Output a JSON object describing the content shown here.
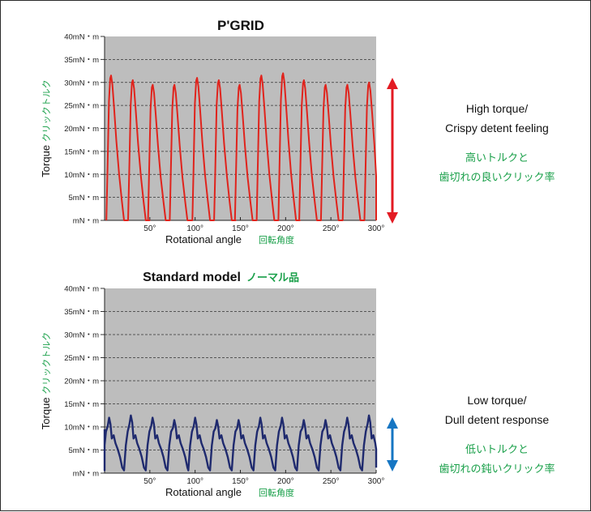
{
  "colors": {
    "background": "#ffffff",
    "plot_area": "#bdbdbd",
    "frame": "#2b2b2b",
    "pgrid_trace": "#e0231c",
    "standard_trace": "#1f2a6e",
    "japanese_text": "#1aa04a",
    "arrow_red": "#e31b23",
    "arrow_blue": "#1676c3"
  },
  "chart_data": [
    {
      "type": "line",
      "title": "P'GRID",
      "ylabel": "Torque",
      "ylabel_ja": "クリックトルク",
      "xlabel": "Rotational angle",
      "xlabel_ja": "回転角度",
      "y_tick_labels": [
        "mN・m",
        "5mN・m",
        "10mN・m",
        "15mN・m",
        "20mN・m",
        "25mN・m",
        "30mN・m",
        "35mN・m",
        "40mN・m"
      ],
      "y_ticks": [
        0,
        5,
        10,
        15,
        20,
        25,
        30,
        35,
        40
      ],
      "x_tick_labels": [
        "50°",
        "100°",
        "150°",
        "200°",
        "250°",
        "300°"
      ],
      "x_ticks": [
        50,
        100,
        150,
        200,
        250,
        300
      ],
      "xlim": [
        0,
        300
      ],
      "ylim": [
        0,
        40
      ],
      "grid": "dashed horizontal",
      "detent_positions": [
        2,
        26,
        48,
        72,
        97,
        121,
        144,
        168,
        192,
        215,
        239,
        263,
        287
      ],
      "peak_values": [
        31.5,
        30.5,
        29.5,
        29.5,
        31,
        30.5,
        29.5,
        31.5,
        32,
        30.5,
        29.5,
        29.5,
        30
      ],
      "detent_count": 13,
      "detent_period_deg": 23.7,
      "min_torque": 0,
      "annotation_en": [
        "High torque/",
        "Crispy detent feeling"
      ],
      "annotation_ja": [
        "高いトルクと",
        "歯切れの良いクリック率"
      ],
      "arrow_range": [
        0,
        31
      ]
    },
    {
      "type": "line",
      "title": "Standard model",
      "title_ja": "ノーマル品",
      "ylabel": "Torque",
      "ylabel_ja": "クリックトルク",
      "xlabel": "Rotational angle",
      "xlabel_ja": "回転角度",
      "y_tick_labels": [
        "mN・m",
        "5mN・m",
        "10mN・m",
        "15mN・m",
        "20mN・m",
        "25mN・m",
        "30mN・m",
        "35mN・m",
        "40mN・m"
      ],
      "y_ticks": [
        0,
        5,
        10,
        15,
        20,
        25,
        30,
        35,
        40
      ],
      "x_tick_labels": [
        "50°",
        "100°",
        "150°",
        "200°",
        "250°",
        "300°"
      ],
      "x_ticks": [
        50,
        100,
        150,
        200,
        250,
        300
      ],
      "xlim": [
        0,
        300
      ],
      "ylim": [
        0,
        40
      ],
      "grid": "dashed horizontal",
      "detent_positions": [
        -3,
        21,
        45,
        69,
        92,
        116,
        140,
        164,
        188,
        212,
        236,
        260,
        284
      ],
      "peak_values": [
        12,
        12.5,
        12,
        11.5,
        12,
        11.5,
        11.5,
        12,
        12,
        11.5,
        11.5,
        12,
        12.5
      ],
      "detent_count": 13,
      "detent_period_deg": 23.7,
      "min_torque": 0,
      "annotation_en": [
        "Low torque/",
        "Dull detent response"
      ],
      "annotation_ja": [
        "低いトルクと",
        "歯切れの鈍いクリック率"
      ],
      "arrow_range": [
        0,
        12.5
      ]
    }
  ]
}
